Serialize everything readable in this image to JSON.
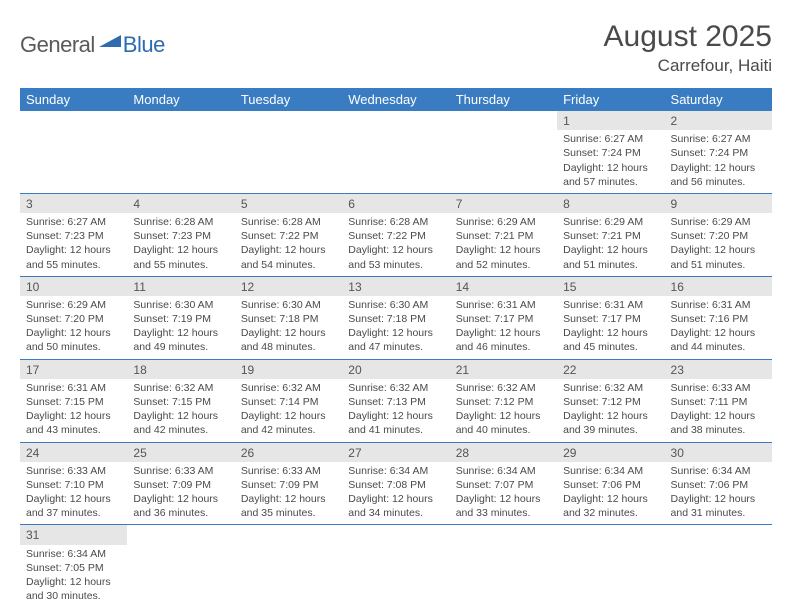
{
  "logo": {
    "general": "General",
    "blue": "Blue"
  },
  "title": "August 2025",
  "location": "Carrefour, Haiti",
  "weekday_headers": [
    "Sunday",
    "Monday",
    "Tuesday",
    "Wednesday",
    "Thursday",
    "Friday",
    "Saturday"
  ],
  "colors": {
    "header_bg": "#3a7cc2",
    "header_text": "#ffffff",
    "daynum_bg": "#e6e6e6",
    "border": "#3a7cc2",
    "text": "#4a4a4a",
    "logo_gray": "#5a5a5a",
    "logo_blue": "#2e6bb0"
  },
  "weeks": [
    [
      null,
      null,
      null,
      null,
      null,
      {
        "n": "1",
        "sunrise": "Sunrise: 6:27 AM",
        "sunset": "Sunset: 7:24 PM",
        "daylight": "Daylight: 12 hours and 57 minutes."
      },
      {
        "n": "2",
        "sunrise": "Sunrise: 6:27 AM",
        "sunset": "Sunset: 7:24 PM",
        "daylight": "Daylight: 12 hours and 56 minutes."
      }
    ],
    [
      {
        "n": "3",
        "sunrise": "Sunrise: 6:27 AM",
        "sunset": "Sunset: 7:23 PM",
        "daylight": "Daylight: 12 hours and 55 minutes."
      },
      {
        "n": "4",
        "sunrise": "Sunrise: 6:28 AM",
        "sunset": "Sunset: 7:23 PM",
        "daylight": "Daylight: 12 hours and 55 minutes."
      },
      {
        "n": "5",
        "sunrise": "Sunrise: 6:28 AM",
        "sunset": "Sunset: 7:22 PM",
        "daylight": "Daylight: 12 hours and 54 minutes."
      },
      {
        "n": "6",
        "sunrise": "Sunrise: 6:28 AM",
        "sunset": "Sunset: 7:22 PM",
        "daylight": "Daylight: 12 hours and 53 minutes."
      },
      {
        "n": "7",
        "sunrise": "Sunrise: 6:29 AM",
        "sunset": "Sunset: 7:21 PM",
        "daylight": "Daylight: 12 hours and 52 minutes."
      },
      {
        "n": "8",
        "sunrise": "Sunrise: 6:29 AM",
        "sunset": "Sunset: 7:21 PM",
        "daylight": "Daylight: 12 hours and 51 minutes."
      },
      {
        "n": "9",
        "sunrise": "Sunrise: 6:29 AM",
        "sunset": "Sunset: 7:20 PM",
        "daylight": "Daylight: 12 hours and 51 minutes."
      }
    ],
    [
      {
        "n": "10",
        "sunrise": "Sunrise: 6:29 AM",
        "sunset": "Sunset: 7:20 PM",
        "daylight": "Daylight: 12 hours and 50 minutes."
      },
      {
        "n": "11",
        "sunrise": "Sunrise: 6:30 AM",
        "sunset": "Sunset: 7:19 PM",
        "daylight": "Daylight: 12 hours and 49 minutes."
      },
      {
        "n": "12",
        "sunrise": "Sunrise: 6:30 AM",
        "sunset": "Sunset: 7:18 PM",
        "daylight": "Daylight: 12 hours and 48 minutes."
      },
      {
        "n": "13",
        "sunrise": "Sunrise: 6:30 AM",
        "sunset": "Sunset: 7:18 PM",
        "daylight": "Daylight: 12 hours and 47 minutes."
      },
      {
        "n": "14",
        "sunrise": "Sunrise: 6:31 AM",
        "sunset": "Sunset: 7:17 PM",
        "daylight": "Daylight: 12 hours and 46 minutes."
      },
      {
        "n": "15",
        "sunrise": "Sunrise: 6:31 AM",
        "sunset": "Sunset: 7:17 PM",
        "daylight": "Daylight: 12 hours and 45 minutes."
      },
      {
        "n": "16",
        "sunrise": "Sunrise: 6:31 AM",
        "sunset": "Sunset: 7:16 PM",
        "daylight": "Daylight: 12 hours and 44 minutes."
      }
    ],
    [
      {
        "n": "17",
        "sunrise": "Sunrise: 6:31 AM",
        "sunset": "Sunset: 7:15 PM",
        "daylight": "Daylight: 12 hours and 43 minutes."
      },
      {
        "n": "18",
        "sunrise": "Sunrise: 6:32 AM",
        "sunset": "Sunset: 7:15 PM",
        "daylight": "Daylight: 12 hours and 42 minutes."
      },
      {
        "n": "19",
        "sunrise": "Sunrise: 6:32 AM",
        "sunset": "Sunset: 7:14 PM",
        "daylight": "Daylight: 12 hours and 42 minutes."
      },
      {
        "n": "20",
        "sunrise": "Sunrise: 6:32 AM",
        "sunset": "Sunset: 7:13 PM",
        "daylight": "Daylight: 12 hours and 41 minutes."
      },
      {
        "n": "21",
        "sunrise": "Sunrise: 6:32 AM",
        "sunset": "Sunset: 7:12 PM",
        "daylight": "Daylight: 12 hours and 40 minutes."
      },
      {
        "n": "22",
        "sunrise": "Sunrise: 6:32 AM",
        "sunset": "Sunset: 7:12 PM",
        "daylight": "Daylight: 12 hours and 39 minutes."
      },
      {
        "n": "23",
        "sunrise": "Sunrise: 6:33 AM",
        "sunset": "Sunset: 7:11 PM",
        "daylight": "Daylight: 12 hours and 38 minutes."
      }
    ],
    [
      {
        "n": "24",
        "sunrise": "Sunrise: 6:33 AM",
        "sunset": "Sunset: 7:10 PM",
        "daylight": "Daylight: 12 hours and 37 minutes."
      },
      {
        "n": "25",
        "sunrise": "Sunrise: 6:33 AM",
        "sunset": "Sunset: 7:09 PM",
        "daylight": "Daylight: 12 hours and 36 minutes."
      },
      {
        "n": "26",
        "sunrise": "Sunrise: 6:33 AM",
        "sunset": "Sunset: 7:09 PM",
        "daylight": "Daylight: 12 hours and 35 minutes."
      },
      {
        "n": "27",
        "sunrise": "Sunrise: 6:34 AM",
        "sunset": "Sunset: 7:08 PM",
        "daylight": "Daylight: 12 hours and 34 minutes."
      },
      {
        "n": "28",
        "sunrise": "Sunrise: 6:34 AM",
        "sunset": "Sunset: 7:07 PM",
        "daylight": "Daylight: 12 hours and 33 minutes."
      },
      {
        "n": "29",
        "sunrise": "Sunrise: 6:34 AM",
        "sunset": "Sunset: 7:06 PM",
        "daylight": "Daylight: 12 hours and 32 minutes."
      },
      {
        "n": "30",
        "sunrise": "Sunrise: 6:34 AM",
        "sunset": "Sunset: 7:06 PM",
        "daylight": "Daylight: 12 hours and 31 minutes."
      }
    ],
    [
      {
        "n": "31",
        "sunrise": "Sunrise: 6:34 AM",
        "sunset": "Sunset: 7:05 PM",
        "daylight": "Daylight: 12 hours and 30 minutes."
      },
      null,
      null,
      null,
      null,
      null,
      null
    ]
  ]
}
